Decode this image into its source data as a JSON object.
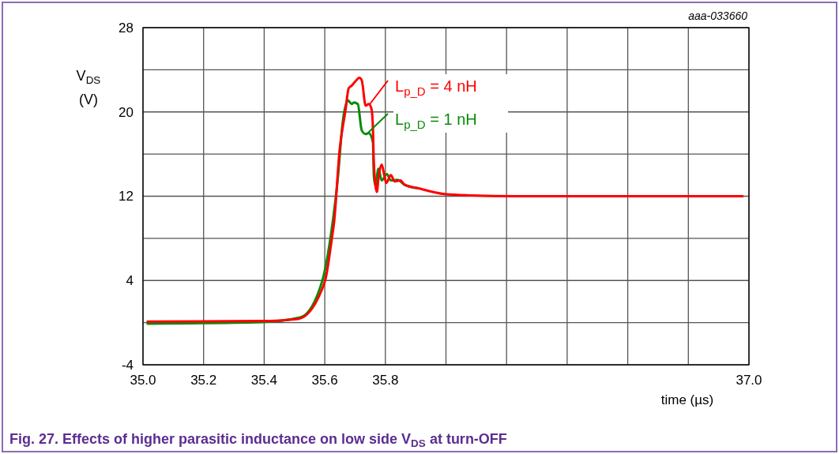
{
  "chart_data": {
    "type": "line",
    "title": "Fig. 27.  Effects of higher parasitic inductance on low side V$_{DS}$ at turn-OFF",
    "xlabel": "time (µs)",
    "ylabel": "V$_{DS}$ (V)",
    "annotations": [
      "aaa-033660"
    ],
    "xlim": [
      35.0,
      37.0
    ],
    "ylim": [
      -4,
      28
    ],
    "xticks": [
      {
        "value": 35.0,
        "label": "35.0"
      },
      35.2,
      35.4,
      35.6,
      35.8,
      {
        "value": 36.0,
        "label": null
      },
      {
        "value": 36.2,
        "label": null
      },
      {
        "value": 36.4,
        "label": null
      },
      {
        "value": 36.6,
        "label": null
      },
      {
        "value": 36.8,
        "label": null
      },
      {
        "value": 37.0,
        "label": "37.0"
      }
    ],
    "yticks": [
      -4,
      {
        "value": 0,
        "label": null
      },
      4,
      {
        "value": 8,
        "label": null
      },
      12,
      {
        "value": 16,
        "label": null
      },
      20,
      {
        "value": 24,
        "label": null
      },
      28
    ],
    "grid": true,
    "legend": "top",
    "series": [
      {
        "name": "L$_{p_D}$ = 1 nH",
        "color": "#0a8a0a",
        "x": [
          35.015,
          35.388,
          35.519,
          35.591,
          35.618,
          35.644,
          35.659,
          35.671,
          35.676,
          35.689,
          35.696,
          35.709,
          35.722,
          35.735,
          35.745,
          35.759,
          35.762,
          35.767,
          35.777,
          35.788,
          35.805,
          35.818,
          35.84,
          35.863,
          35.909
        ],
        "values": [
          -0.1,
          0.05,
          0.5,
          3.9,
          7.9,
          14,
          19,
          20.8,
          21.1,
          20.75,
          20.9,
          20.75,
          18.25,
          17.9,
          18.0,
          17.1,
          13.9,
          13.0,
          14.6,
          13.5,
          14.1,
          13.5,
          13.55,
          13.1,
          12.75
        ]
      },
      {
        "name": "L$_{p_D}$ = 4 nH",
        "color": "#ff0000",
        "x": [
          35.015,
          35.388,
          35.512,
          35.59,
          35.603,
          35.623,
          35.631,
          35.649,
          35.668,
          35.679,
          35.689,
          35.701,
          35.714,
          35.722,
          35.735,
          35.745,
          35.754,
          35.759,
          35.762,
          35.772,
          35.777,
          35.788,
          35.797,
          35.803,
          35.818,
          35.831,
          35.85,
          35.863,
          35.909,
          35.995,
          36.085,
          36.222,
          36.979
        ],
        "values": [
          0.1,
          0.15,
          0.35,
          3.1,
          4.2,
          7.9,
          9.6,
          16.4,
          20.1,
          22.25,
          22.5,
          22.9,
          23.25,
          23.0,
          20.6,
          20.75,
          20.3,
          18.4,
          15.1,
          12.4,
          13.6,
          15.0,
          13.9,
          13.25,
          14.0,
          13.4,
          13.5,
          13.1,
          12.75,
          12.2,
          12.07,
          12.0,
          12.0
        ]
      }
    ]
  }
}
